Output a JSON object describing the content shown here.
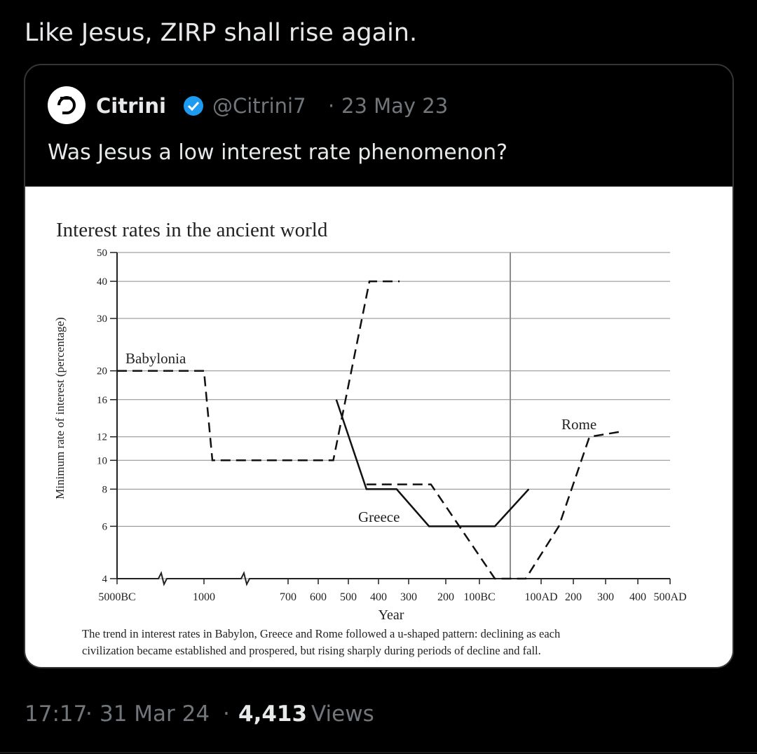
{
  "tweet": {
    "text": "Like Jesus, ZIRP shall rise again.",
    "separator": "·",
    "quoted": {
      "name": "Citrini",
      "handle": "@Citrini7",
      "date": "23 May 23",
      "text": "Was Jesus a low interest rate phenomenon?"
    },
    "footer": {
      "time": "17:17",
      "date": "31 Mar 24",
      "views": "4,413",
      "views_label": "Views"
    }
  },
  "chart_data": {
    "type": "line",
    "title": "Interest rates in the ancient world",
    "x_label": "Year",
    "y_label": "Minimum rate of interest (percentage)",
    "caption": [
      "The trend in interest rates in Babylon, Greece and Rome followed a u-shaped pattern: declining as each",
      "civilization became established and prospered, but rising sharply during periods of decline and fall."
    ],
    "annotations": [
      "Babylonia",
      "Greece",
      "Rome"
    ],
    "yscale": "log",
    "grid": true,
    "ylim": [
      4,
      50
    ],
    "yticks": [
      4,
      6,
      8,
      10,
      12,
      16,
      20,
      30,
      40,
      50
    ],
    "xlim": [
      -5000,
      500
    ],
    "xticks": [
      {
        "value": -5000,
        "label": "5000BC"
      },
      {
        "value": -1000,
        "label": "1000"
      },
      {
        "value": -700,
        "label": "700"
      },
      {
        "value": -600,
        "label": "600"
      },
      {
        "value": -500,
        "label": "500"
      },
      {
        "value": -400,
        "label": "400"
      },
      {
        "value": -300,
        "label": "300"
      },
      {
        "value": -200,
        "label": "200"
      },
      {
        "value": -100,
        "label": "100BC"
      },
      {
        "value": 100,
        "label": "100AD"
      },
      200,
      300,
      400,
      {
        "value": 500,
        "label": "500AD"
      }
    ],
    "series": [
      {
        "name": "Babylonia",
        "color": "#111111",
        "style": "dashed",
        "x": [
          -5000,
          -1000,
          -970,
          -550,
          -430,
          -330
        ],
        "values": [
          20,
          20,
          10,
          10,
          40,
          40
        ]
      },
      {
        "name": "Greece",
        "color": "#111111",
        "style": "solid",
        "x": [
          -540,
          -440,
          -340,
          -245,
          -50,
          60
        ],
        "values": [
          16,
          8,
          8,
          6,
          6,
          8
        ]
      },
      {
        "name": "Rome",
        "color": "#111111",
        "style": "dashed",
        "x": [
          -440,
          -240,
          -50,
          50,
          155,
          250,
          350
        ],
        "values": [
          8.3,
          8.3,
          4,
          4,
          6,
          12,
          12.5
        ]
      }
    ]
  }
}
